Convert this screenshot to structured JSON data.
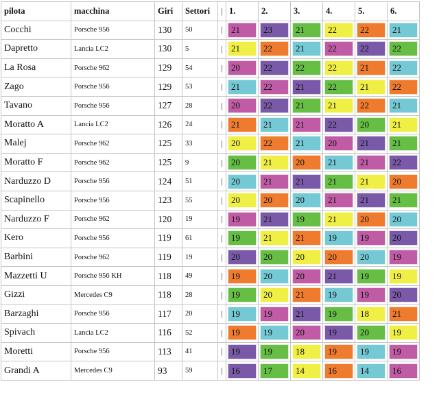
{
  "colors": {
    "14": "#f0ef45",
    "16": "#ef7b2f",
    "17": "#66be45",
    "18": "#f0ef45",
    "19": "#bf5ca5",
    "20": "#7a5aa8",
    "21": "#74c9d4",
    "22": "#66be45",
    "23": "#7a5aa8"
  },
  "header": {
    "pilota": "pilota",
    "macchina": "macchina",
    "giri": "Giri",
    "settori": "Settori",
    "sep": "|",
    "c1": "1.",
    "c2": "2.",
    "c3": "3.",
    "c4": "4.",
    "c5": "5.",
    "c6": "6."
  },
  "rows": [
    {
      "pilota": "Cocchi",
      "macchina": "Porsche 956",
      "giri": "130",
      "settori": "50",
      "sep": "|",
      "scores": [
        {
          "v": "21",
          "c": "#bf5ca5"
        },
        {
          "v": "23",
          "c": "#7a5aa8"
        },
        {
          "v": "21",
          "c": "#66be45"
        },
        {
          "v": "22",
          "c": "#f0ef45"
        },
        {
          "v": "22",
          "c": "#ef7b2f"
        },
        {
          "v": "21",
          "c": "#74c9d4"
        }
      ]
    },
    {
      "pilota": "Dapretto",
      "macchina": "Lancia LC2",
      "giri": "130",
      "settori": "5",
      "sep": "|",
      "scores": [
        {
          "v": "21",
          "c": "#f0ef45"
        },
        {
          "v": "22",
          "c": "#ef7b2f"
        },
        {
          "v": "21",
          "c": "#74c9d4"
        },
        {
          "v": "22",
          "c": "#bf5ca5"
        },
        {
          "v": "22",
          "c": "#7a5aa8"
        },
        {
          "v": "22",
          "c": "#66be45"
        }
      ]
    },
    {
      "pilota": "La Rosa",
      "macchina": "Porsche 962",
      "giri": "129",
      "settori": "54",
      "sep": "|",
      "scores": [
        {
          "v": "20",
          "c": "#bf5ca5"
        },
        {
          "v": "22",
          "c": "#7a5aa8"
        },
        {
          "v": "22",
          "c": "#66be45"
        },
        {
          "v": "22",
          "c": "#f0ef45"
        },
        {
          "v": "21",
          "c": "#ef7b2f"
        },
        {
          "v": "22",
          "c": "#74c9d4"
        }
      ]
    },
    {
      "pilota": "Zago",
      "macchina": "Porsche 956",
      "giri": "129",
      "settori": "53",
      "sep": "|",
      "scores": [
        {
          "v": "21",
          "c": "#74c9d4"
        },
        {
          "v": "22",
          "c": "#bf5ca5"
        },
        {
          "v": "21",
          "c": "#7a5aa8"
        },
        {
          "v": "22",
          "c": "#66be45"
        },
        {
          "v": "21",
          "c": "#f0ef45"
        },
        {
          "v": "22",
          "c": "#ef7b2f"
        }
      ]
    },
    {
      "pilota": "Tavano",
      "macchina": "Porsche 956",
      "giri": "127",
      "settori": "28",
      "sep": "|",
      "scores": [
        {
          "v": "20",
          "c": "#bf5ca5"
        },
        {
          "v": "22",
          "c": "#7a5aa8"
        },
        {
          "v": "21",
          "c": "#66be45"
        },
        {
          "v": "21",
          "c": "#f0ef45"
        },
        {
          "v": "22",
          "c": "#ef7b2f"
        },
        {
          "v": "21",
          "c": "#74c9d4"
        }
      ]
    },
    {
      "pilota": "Moratto A",
      "macchina": "Lancia LC2",
      "giri": "126",
      "settori": "24",
      "sep": "|",
      "scores": [
        {
          "v": "21",
          "c": "#ef7b2f"
        },
        {
          "v": "21",
          "c": "#74c9d4"
        },
        {
          "v": "21",
          "c": "#bf5ca5"
        },
        {
          "v": "22",
          "c": "#7a5aa8"
        },
        {
          "v": "20",
          "c": "#66be45"
        },
        {
          "v": "21",
          "c": "#f0ef45"
        }
      ]
    },
    {
      "pilota": "Malej",
      "macchina": "Porsche 962",
      "giri": "125",
      "settori": "33",
      "sep": "|",
      "scores": [
        {
          "v": "20",
          "c": "#f0ef45"
        },
        {
          "v": "22",
          "c": "#ef7b2f"
        },
        {
          "v": "21",
          "c": "#74c9d4"
        },
        {
          "v": "20",
          "c": "#bf5ca5"
        },
        {
          "v": "21",
          "c": "#7a5aa8"
        },
        {
          "v": "21",
          "c": "#66be45"
        }
      ]
    },
    {
      "pilota": "Moratto F",
      "macchina": "Porsche 962",
      "giri": "125",
      "settori": "9",
      "sep": "|",
      "scores": [
        {
          "v": "20",
          "c": "#66be45"
        },
        {
          "v": "21",
          "c": "#f0ef45"
        },
        {
          "v": "20",
          "c": "#ef7b2f"
        },
        {
          "v": "21",
          "c": "#74c9d4"
        },
        {
          "v": "21",
          "c": "#bf5ca5"
        },
        {
          "v": "22",
          "c": "#7a5aa8"
        }
      ]
    },
    {
      "pilota": "Narduzzo D",
      "macchina": "Porsche 956",
      "giri": "124",
      "settori": "51",
      "sep": "|",
      "scores": [
        {
          "v": "20",
          "c": "#74c9d4"
        },
        {
          "v": "21",
          "c": "#bf5ca5"
        },
        {
          "v": "21",
          "c": "#7a5aa8"
        },
        {
          "v": "21",
          "c": "#66be45"
        },
        {
          "v": "21",
          "c": "#f0ef45"
        },
        {
          "v": "20",
          "c": "#ef7b2f"
        }
      ]
    },
    {
      "pilota": "Scapinello",
      "macchina": "Porsche 956",
      "giri": "123",
      "settori": "55",
      "sep": "|",
      "scores": [
        {
          "v": "20",
          "c": "#f0ef45"
        },
        {
          "v": "20",
          "c": "#ef7b2f"
        },
        {
          "v": "20",
          "c": "#74c9d4"
        },
        {
          "v": "21",
          "c": "#bf5ca5"
        },
        {
          "v": "21",
          "c": "#7a5aa8"
        },
        {
          "v": "21",
          "c": "#66be45"
        }
      ]
    },
    {
      "pilota": "Narduzzo F",
      "macchina": "Porsche 962",
      "giri": "120",
      "settori": "19",
      "sep": "|",
      "scores": [
        {
          "v": "19",
          "c": "#bf5ca5"
        },
        {
          "v": "21",
          "c": "#7a5aa8"
        },
        {
          "v": "19",
          "c": "#66be45"
        },
        {
          "v": "21",
          "c": "#f0ef45"
        },
        {
          "v": "20",
          "c": "#ef7b2f"
        },
        {
          "v": "20",
          "c": "#74c9d4"
        }
      ]
    },
    {
      "pilota": "Kero",
      "macchina": "Porsche 956",
      "giri": "119",
      "settori": "61",
      "sep": "|",
      "scores": [
        {
          "v": "19",
          "c": "#66be45"
        },
        {
          "v": "21",
          "c": "#f0ef45"
        },
        {
          "v": "21",
          "c": "#ef7b2f"
        },
        {
          "v": "19",
          "c": "#74c9d4"
        },
        {
          "v": "19",
          "c": "#bf5ca5"
        },
        {
          "v": "20",
          "c": "#7a5aa8"
        }
      ]
    },
    {
      "pilota": "Barbini",
      "macchina": "Porsche 962",
      "giri": "119",
      "settori": "19",
      "sep": "|",
      "scores": [
        {
          "v": "20",
          "c": "#7a5aa8"
        },
        {
          "v": "20",
          "c": "#66be45"
        },
        {
          "v": "20",
          "c": "#f0ef45"
        },
        {
          "v": "20",
          "c": "#ef7b2f"
        },
        {
          "v": "20",
          "c": "#74c9d4"
        },
        {
          "v": "19",
          "c": "#bf5ca5"
        }
      ]
    },
    {
      "pilota": "Mazzetti U",
      "macchina": "Porsche 956 KH",
      "giri": "118",
      "settori": "49",
      "sep": "|",
      "scores": [
        {
          "v": "19",
          "c": "#ef7b2f"
        },
        {
          "v": "20",
          "c": "#74c9d4"
        },
        {
          "v": "20",
          "c": "#bf5ca5"
        },
        {
          "v": "21",
          "c": "#7a5aa8"
        },
        {
          "v": "19",
          "c": "#66be45"
        },
        {
          "v": "19",
          "c": "#f0ef45"
        }
      ]
    },
    {
      "pilota": "Gizzi",
      "macchina": "Mercedes C9",
      "giri": "118",
      "settori": "28",
      "sep": "|",
      "scores": [
        {
          "v": "19",
          "c": "#66be45"
        },
        {
          "v": "20",
          "c": "#f0ef45"
        },
        {
          "v": "21",
          "c": "#ef7b2f"
        },
        {
          "v": "19",
          "c": "#74c9d4"
        },
        {
          "v": "19",
          "c": "#bf5ca5"
        },
        {
          "v": "20",
          "c": "#7a5aa8"
        }
      ]
    },
    {
      "pilota": "Barzaghi",
      "macchina": "Porsche 956",
      "giri": "117",
      "settori": "20",
      "sep": "|",
      "scores": [
        {
          "v": "19",
          "c": "#74c9d4"
        },
        {
          "v": "19",
          "c": "#bf5ca5"
        },
        {
          "v": "21",
          "c": "#7a5aa8"
        },
        {
          "v": "19",
          "c": "#66be45"
        },
        {
          "v": "18",
          "c": "#f0ef45"
        },
        {
          "v": "21",
          "c": "#ef7b2f"
        }
      ]
    },
    {
      "pilota": "Spivach",
      "macchina": "Lancia LC2",
      "giri": "116",
      "settori": "52",
      "sep": "|",
      "scores": [
        {
          "v": "19",
          "c": "#ef7b2f"
        },
        {
          "v": "19",
          "c": "#74c9d4"
        },
        {
          "v": "20",
          "c": "#bf5ca5"
        },
        {
          "v": "19",
          "c": "#7a5aa8"
        },
        {
          "v": "20",
          "c": "#66be45"
        },
        {
          "v": "19",
          "c": "#f0ef45"
        }
      ]
    },
    {
      "pilota": "Moretti",
      "macchina": "Porsche 956",
      "giri": "113",
      "settori": "41",
      "sep": "|",
      "scores": [
        {
          "v": "19",
          "c": "#7a5aa8"
        },
        {
          "v": "19",
          "c": "#66be45"
        },
        {
          "v": "18",
          "c": "#f0ef45"
        },
        {
          "v": "19",
          "c": "#ef7b2f"
        },
        {
          "v": "19",
          "c": "#74c9d4"
        },
        {
          "v": "19",
          "c": "#bf5ca5"
        }
      ]
    },
    {
      "pilota": "Grandi A",
      "macchina": "Mercedes C9",
      "giri": "93",
      "settori": "59",
      "sep": "|",
      "scores": [
        {
          "v": "16",
          "c": "#7a5aa8"
        },
        {
          "v": "17",
          "c": "#66be45"
        },
        {
          "v": "14",
          "c": "#f0ef45"
        },
        {
          "v": "16",
          "c": "#ef7b2f"
        },
        {
          "v": "14",
          "c": "#74c9d4"
        },
        {
          "v": "16",
          "c": "#bf5ca5"
        }
      ]
    }
  ]
}
